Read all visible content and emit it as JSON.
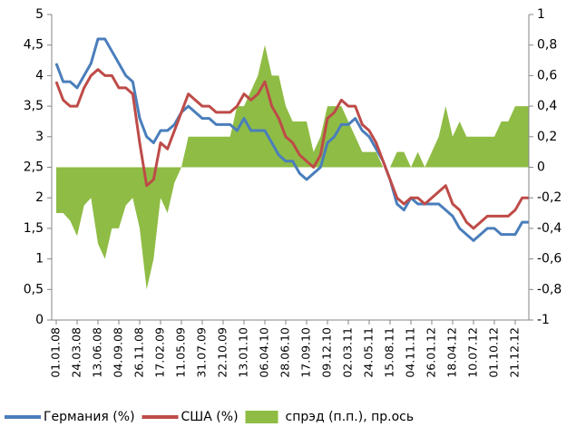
{
  "chart_data": {
    "type": "line",
    "categories": [
      "01.01.08",
      null,
      null,
      "24.03.08",
      null,
      null,
      "13.06.08",
      null,
      null,
      "04.09.08",
      null,
      null,
      "26.11.08",
      null,
      null,
      "17.02.09",
      null,
      null,
      "11.05.09",
      null,
      null,
      "31.07.09",
      null,
      null,
      "22.10.09",
      null,
      null,
      "13.01.10",
      null,
      null,
      "06.04.10",
      null,
      null,
      "28.06.10",
      null,
      null,
      "17.09.10",
      null,
      null,
      "09.12.10",
      null,
      null,
      "02.03.11",
      null,
      null,
      "24.05.11",
      null,
      null,
      "15.08.11",
      null,
      null,
      "04.11.11",
      null,
      null,
      "26.01.12",
      null,
      null,
      "18.04.12",
      null,
      null,
      "10.07.12",
      null,
      null,
      "01.10.12",
      null,
      null,
      "21.12.12",
      null,
      null
    ],
    "series": [
      {
        "name": "спрэд (п.п.), пр.ось",
        "type": "area",
        "axis": "y2",
        "color": "#8fbc45",
        "values": [
          -0.3,
          -0.3,
          -0.35,
          -0.45,
          -0.25,
          -0.2,
          -0.5,
          -0.6,
          -0.4,
          -0.4,
          -0.25,
          -0.2,
          -0.4,
          -0.8,
          -0.6,
          -0.2,
          -0.3,
          -0.1,
          0.0,
          0.2,
          0.2,
          0.2,
          0.2,
          0.2,
          0.2,
          0.2,
          0.4,
          0.4,
          0.5,
          0.6,
          0.8,
          0.6,
          0.6,
          0.4,
          0.3,
          0.3,
          0.3,
          0.1,
          0.2,
          0.4,
          0.4,
          0.4,
          0.3,
          0.2,
          0.1,
          0.1,
          0.1,
          0.0,
          0.0,
          0.1,
          0.1,
          0.0,
          0.1,
          0.0,
          0.1,
          0.2,
          0.4,
          0.2,
          0.3,
          0.2,
          0.2,
          0.2,
          0.2,
          0.2,
          0.3,
          0.3,
          0.4,
          0.4,
          0.4
        ]
      },
      {
        "name": "Германия (%)",
        "type": "line",
        "color": "#4a7ebb",
        "values": [
          4.2,
          3.9,
          3.9,
          3.8,
          4.0,
          4.2,
          4.6,
          4.6,
          4.4,
          4.2,
          4.0,
          3.9,
          3.3,
          3.0,
          2.9,
          3.1,
          3.1,
          3.2,
          3.4,
          3.5,
          3.4,
          3.3,
          3.3,
          3.2,
          3.2,
          3.2,
          3.1,
          3.3,
          3.1,
          3.1,
          3.1,
          2.9,
          2.7,
          2.6,
          2.6,
          2.4,
          2.3,
          2.4,
          2.5,
          2.9,
          3.0,
          3.2,
          3.2,
          3.3,
          3.1,
          3.0,
          2.8,
          2.6,
          2.3,
          1.9,
          1.8,
          2.0,
          1.9,
          1.9,
          1.9,
          1.9,
          1.8,
          1.7,
          1.5,
          1.4,
          1.3,
          1.4,
          1.5,
          1.5,
          1.4,
          1.4,
          1.4,
          1.6,
          1.6
        ]
      },
      {
        "name": "США (%)",
        "type": "line",
        "color": "#be4b48",
        "values": [
          3.9,
          3.6,
          3.5,
          3.5,
          3.8,
          4.0,
          4.1,
          4.0,
          4.0,
          3.8,
          3.8,
          3.7,
          2.9,
          2.2,
          2.3,
          2.9,
          2.8,
          3.1,
          3.4,
          3.7,
          3.6,
          3.5,
          3.5,
          3.4,
          3.4,
          3.4,
          3.5,
          3.7,
          3.6,
          3.7,
          3.9,
          3.5,
          3.3,
          3.0,
          2.9,
          2.7,
          2.6,
          2.5,
          2.7,
          3.3,
          3.4,
          3.6,
          3.5,
          3.5,
          3.2,
          3.1,
          2.9,
          2.6,
          2.3,
          2.0,
          1.9,
          2.0,
          2.0,
          1.9,
          2.0,
          2.1,
          2.2,
          1.9,
          1.8,
          1.6,
          1.5,
          1.6,
          1.7,
          1.7,
          1.7,
          1.7,
          1.8,
          2.0,
          2.0
        ]
      }
    ],
    "ylim": [
      0,
      5
    ],
    "yticks": [
      0,
      {
        "value": 0.5,
        "label": "0,5"
      },
      1,
      {
        "value": 1.5,
        "label": "1,5"
      },
      2,
      {
        "value": 2.5,
        "label": "2,5"
      },
      3,
      {
        "value": 3.5,
        "label": "3,5"
      },
      4,
      {
        "value": 4.5,
        "label": "4,5"
      },
      5
    ],
    "y2lim": [
      -1,
      1
    ],
    "y2ticks": [
      -1,
      {
        "value": -0.8,
        "label": "-0,8"
      },
      {
        "value": -0.6,
        "label": "-0,6"
      },
      {
        "value": -0.4,
        "label": "-0,4"
      },
      {
        "value": -0.2,
        "label": "-0,2"
      },
      0,
      {
        "value": 0.2,
        "label": "0,2"
      },
      {
        "value": 0.4,
        "label": "0,4"
      },
      {
        "value": 0.6,
        "label": "0,6"
      },
      {
        "value": 0.8,
        "label": "0,8"
      },
      1
    ],
    "legend": "bottom"
  }
}
